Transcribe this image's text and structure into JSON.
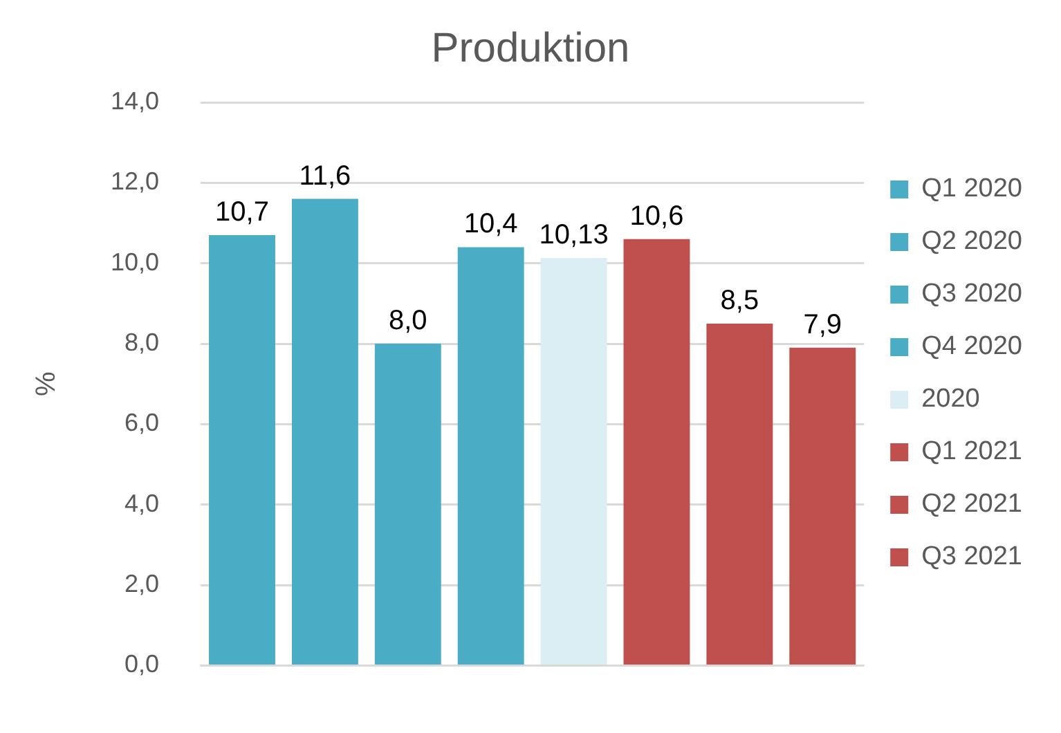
{
  "chart_data": {
    "type": "bar",
    "title": "Produktion",
    "ylabel": "%",
    "categories": [
      null
    ],
    "series": [
      {
        "name": "Q1 2020",
        "color": "#4bacc6",
        "values": [
          10.7
        ],
        "value_labels": [
          "10,7"
        ]
      },
      {
        "name": "Q2 2020",
        "color": "#4bacc6",
        "values": [
          11.6
        ],
        "value_labels": [
          "11,6"
        ]
      },
      {
        "name": "Q3 2020",
        "color": "#4bacc6",
        "values": [
          8.0
        ],
        "value_labels": [
          "8,0"
        ]
      },
      {
        "name": "Q4 2020",
        "color": "#4bacc6",
        "values": [
          10.4
        ],
        "value_labels": [
          "10,4"
        ]
      },
      {
        "name": "2020",
        "color": "#dbeef4",
        "values": [
          10.13
        ],
        "value_labels": [
          "10,13"
        ]
      },
      {
        "name": "Q1 2021",
        "color": "#c0504d",
        "values": [
          10.6
        ],
        "value_labels": [
          "10,6"
        ]
      },
      {
        "name": "Q2 2021",
        "color": "#c0504d",
        "values": [
          8.5
        ],
        "value_labels": [
          "8,5"
        ]
      },
      {
        "name": "Q3 2021",
        "color": "#c0504d",
        "values": [
          7.9
        ],
        "value_labels": [
          "7,9"
        ]
      }
    ],
    "ylim": [
      0,
      14
    ],
    "yticks": [
      {
        "value": 0,
        "label": "0,0"
      },
      {
        "value": 2,
        "label": "2,0"
      },
      {
        "value": 4,
        "label": "4,0"
      },
      {
        "value": 6,
        "label": "6,0"
      },
      {
        "value": 8,
        "label": "8,0"
      },
      {
        "value": 10,
        "label": "10,0"
      },
      {
        "value": 12,
        "label": "12,0"
      },
      {
        "value": 14,
        "label": "14,0"
      }
    ],
    "grid": "y",
    "legend": "right"
  }
}
